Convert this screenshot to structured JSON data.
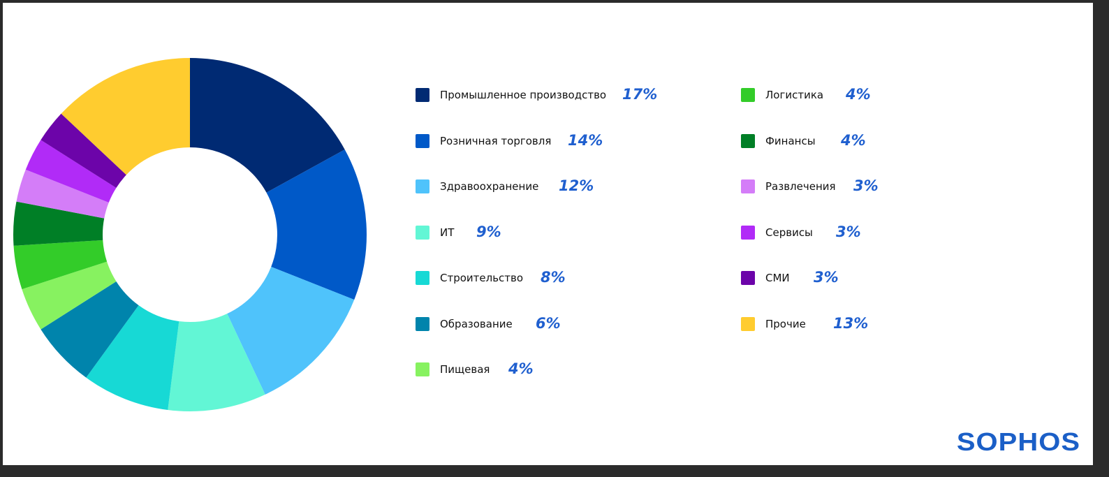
{
  "chart_data": {
    "type": "pie",
    "donut": true,
    "categories": [
      "Промышленное производство",
      "Розничная торговля",
      "Здравоохранение",
      "ИТ",
      "Строительство",
      "Образование",
      "Пищевая",
      "Логистика",
      "Финансы",
      "Развлечения",
      "Сервисы",
      "СМИ",
      "Прочие"
    ],
    "values": [
      17,
      14,
      12,
      9,
      8,
      6,
      4,
      4,
      4,
      3,
      3,
      3,
      13
    ],
    "value_labels": [
      "17%",
      "14%",
      "12%",
      "9%",
      "8%",
      "6%",
      "4%",
      "4%",
      "4%",
      "3%",
      "3%",
      "3%",
      "13%"
    ],
    "colors": [
      "#002a73",
      "#0059c8",
      "#4fc3fb",
      "#62f6d5",
      "#17d9d5",
      "#0084ac",
      "#87f260",
      "#33cc29",
      "#007f26",
      "#d47df8",
      "#b12bf7",
      "#6c04a9",
      "#ffcc2f"
    ],
    "legend_placement": "right"
  },
  "brand": {
    "logo_text": "SOPHOS",
    "logo_color": "#1b5fc7"
  }
}
